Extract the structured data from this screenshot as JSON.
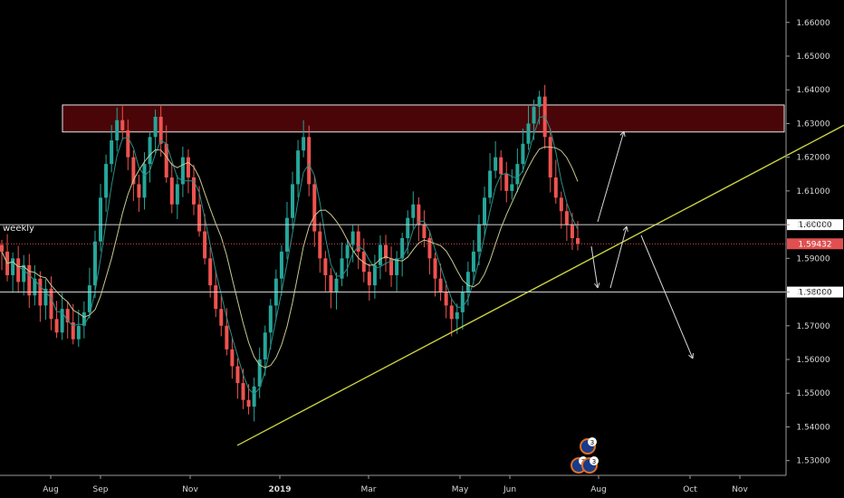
{
  "chart_data": {
    "type": "candlestick",
    "timeframe_label": "weekly",
    "y_ticks": [
      "1.66000",
      "1.65000",
      "1.64000",
      "1.63000",
      "1.62000",
      "1.61000",
      "1.60000",
      "1.59000",
      "1.58000",
      "1.57000",
      "1.56000",
      "1.55000",
      "1.54000",
      "1.53000"
    ],
    "y_range": [
      1.5275,
      1.6645
    ],
    "x_ticks": [
      {
        "label": "Aug",
        "bold": false
      },
      {
        "label": "Sep",
        "bold": false
      },
      {
        "label": "Nov",
        "bold": false
      },
      {
        "label": "2019",
        "bold": true
      },
      {
        "label": "Mar",
        "bold": false
      },
      {
        "label": "May",
        "bold": false
      },
      {
        "label": "Jun",
        "bold": false
      },
      {
        "label": "Aug",
        "bold": false
      },
      {
        "label": "Oct",
        "bold": false
      },
      {
        "label": "Nov",
        "bold": false
      }
    ],
    "horizontal_levels": [
      {
        "value": 1.6,
        "label": "1.60000",
        "style": "solid"
      },
      {
        "value": 1.58,
        "label": "1.58000",
        "style": "solid"
      }
    ],
    "current_price": {
      "value": 1.59432,
      "label": "1.59432",
      "style": "dotted",
      "color": "#e05050"
    },
    "resistance_zone": {
      "low": 1.6275,
      "high": 1.6355,
      "fill": "#4a0508"
    },
    "trendline": {
      "color": "#c8d040",
      "from_value": 1.5345,
      "to_value": 1.6295
    },
    "colors": {
      "up": "#26a69a",
      "down": "#ef5350",
      "ma_fast": "#2a8f88",
      "ma_slow": "#c8c890",
      "arrows": "#d8d8d8"
    },
    "closes": [
      1.592,
      1.585,
      1.59,
      1.583,
      1.588,
      1.579,
      1.584,
      1.576,
      1.581,
      1.572,
      1.568,
      1.575,
      1.571,
      1.566,
      1.57,
      1.574,
      1.582,
      1.595,
      1.608,
      1.618,
      1.625,
      1.631,
      1.628,
      1.62,
      1.612,
      1.608,
      1.618,
      1.626,
      1.632,
      1.624,
      1.614,
      1.606,
      1.612,
      1.62,
      1.614,
      1.606,
      1.598,
      1.59,
      1.582,
      1.575,
      1.57,
      1.563,
      1.558,
      1.553,
      1.548,
      1.546,
      1.552,
      1.56,
      1.568,
      1.576,
      1.584,
      1.592,
      1.602,
      1.612,
      1.622,
      1.626,
      1.612,
      1.598,
      1.59,
      1.585,
      1.58,
      1.584,
      1.59,
      1.594,
      1.598,
      1.592,
      1.586,
      1.582,
      1.588,
      1.594,
      1.59,
      1.585,
      1.59,
      1.596,
      1.602,
      1.606,
      1.6,
      1.596,
      1.59,
      1.584,
      1.58,
      1.576,
      1.572,
      1.574,
      1.58,
      1.586,
      1.592,
      1.6,
      1.608,
      1.616,
      1.62,
      1.615,
      1.61,
      1.612,
      1.618,
      1.624,
      1.63,
      1.635,
      1.638,
      1.626,
      1.614,
      1.608,
      1.604,
      1.6,
      1.596,
      1.5943
    ]
  }
}
